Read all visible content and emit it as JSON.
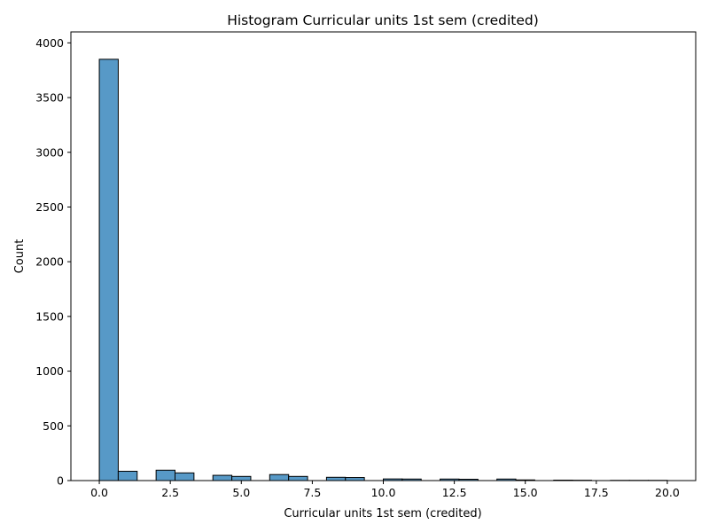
{
  "chart_data": {
    "type": "bar",
    "title": "Histogram Curricular units 1st sem (credited)",
    "xlabel": "Curricular units 1st sem (credited)",
    "ylabel": "Count",
    "xlim": [
      -1.0,
      21.0
    ],
    "ylim": [
      0,
      4100
    ],
    "x_ticks": [
      {
        "value": 0.0,
        "label": "0.0"
      },
      {
        "value": 2.5,
        "label": "2.5"
      },
      {
        "value": 5.0,
        "label": "5.0"
      },
      {
        "value": 7.5,
        "label": "7.5"
      },
      {
        "value": 10.0,
        "label": "10.0"
      },
      {
        "value": 12.5,
        "label": "12.5"
      },
      {
        "value": 15.0,
        "label": "15.0"
      },
      {
        "value": 17.5,
        "label": "17.5"
      },
      {
        "value": 20.0,
        "label": "20.0"
      }
    ],
    "y_ticks": [
      {
        "value": 0,
        "label": "0"
      },
      {
        "value": 500,
        "label": "500"
      },
      {
        "value": 1000,
        "label": "1000"
      },
      {
        "value": 1500,
        "label": "1500"
      },
      {
        "value": 2000,
        "label": "2000"
      },
      {
        "value": 2500,
        "label": "2500"
      },
      {
        "value": 3000,
        "label": "3000"
      },
      {
        "value": 3500,
        "label": "3500"
      },
      {
        "value": 4000,
        "label": "4000"
      }
    ],
    "grid": false,
    "bar_color": "#5799c7",
    "edge_color": "#000000",
    "bins": [
      {
        "x0": 0.0,
        "x1": 0.6667,
        "count": 3850
      },
      {
        "x0": 0.6667,
        "x1": 1.3333,
        "count": 85
      },
      {
        "x0": 1.3333,
        "x1": 2.0,
        "count": 0
      },
      {
        "x0": 2.0,
        "x1": 2.6667,
        "count": 95
      },
      {
        "x0": 2.6667,
        "x1": 3.3333,
        "count": 70
      },
      {
        "x0": 3.3333,
        "x1": 4.0,
        "count": 0
      },
      {
        "x0": 4.0,
        "x1": 4.6667,
        "count": 48
      },
      {
        "x0": 4.6667,
        "x1": 5.3333,
        "count": 38
      },
      {
        "x0": 5.3333,
        "x1": 6.0,
        "count": 0
      },
      {
        "x0": 6.0,
        "x1": 6.6667,
        "count": 55
      },
      {
        "x0": 6.6667,
        "x1": 7.3333,
        "count": 38
      },
      {
        "x0": 7.3333,
        "x1": 8.0,
        "count": 0
      },
      {
        "x0": 8.0,
        "x1": 8.6667,
        "count": 30
      },
      {
        "x0": 8.6667,
        "x1": 9.3333,
        "count": 28
      },
      {
        "x0": 9.3333,
        "x1": 10.0,
        "count": 0
      },
      {
        "x0": 10.0,
        "x1": 10.6667,
        "count": 15
      },
      {
        "x0": 10.6667,
        "x1": 11.3333,
        "count": 14
      },
      {
        "x0": 11.3333,
        "x1": 12.0,
        "count": 0
      },
      {
        "x0": 12.0,
        "x1": 12.6667,
        "count": 14
      },
      {
        "x0": 12.6667,
        "x1": 13.3333,
        "count": 12
      },
      {
        "x0": 13.3333,
        "x1": 14.0,
        "count": 0
      },
      {
        "x0": 14.0,
        "x1": 14.6667,
        "count": 14
      },
      {
        "x0": 14.6667,
        "x1": 15.3333,
        "count": 6
      },
      {
        "x0": 15.3333,
        "x1": 16.0,
        "count": 0
      },
      {
        "x0": 16.0,
        "x1": 16.6667,
        "count": 4
      },
      {
        "x0": 16.6667,
        "x1": 17.3333,
        "count": 3
      },
      {
        "x0": 17.3333,
        "x1": 18.0,
        "count": 0
      },
      {
        "x0": 18.0,
        "x1": 18.6667,
        "count": 2
      },
      {
        "x0": 18.6667,
        "x1": 19.3333,
        "count": 2
      },
      {
        "x0": 19.3333,
        "x1": 20.0,
        "count": 2
      }
    ]
  }
}
